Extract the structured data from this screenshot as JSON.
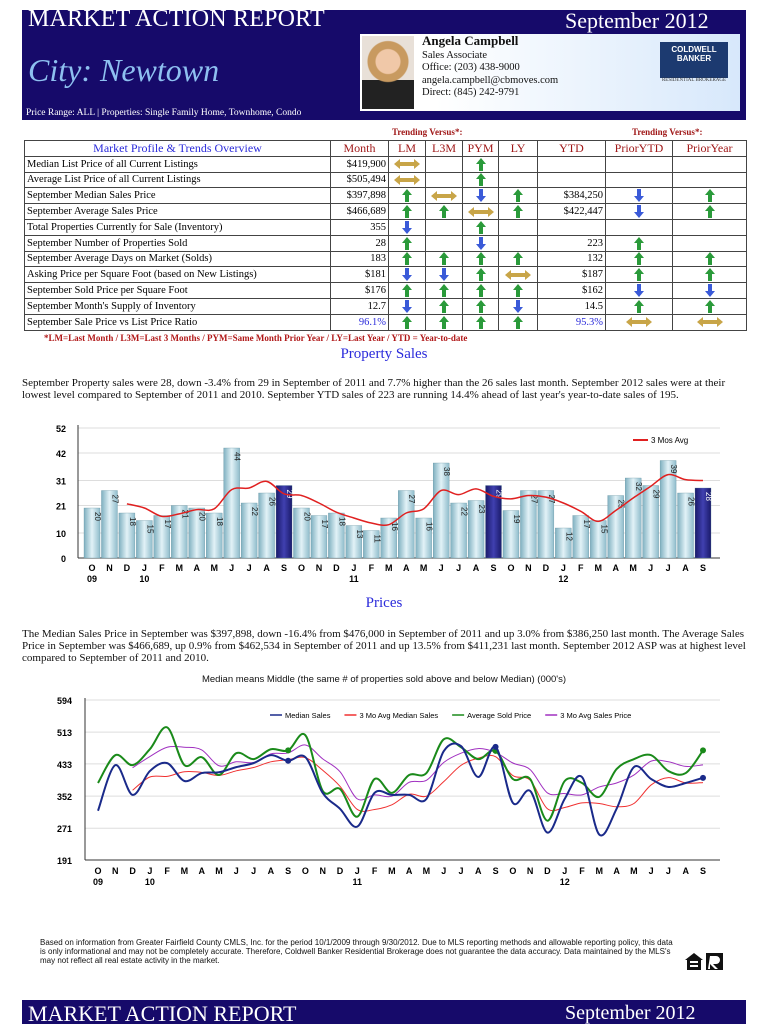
{
  "header": {
    "title": "MARKET ACTION REPORT",
    "date": "September 2012",
    "city": "City: Newtown",
    "price_range": "Price Range: ALL | Properties: Single Family Home, Townhome, Condo"
  },
  "agent": {
    "name": "Angela Campbell",
    "role": "Sales Associate",
    "office": "Office: (203) 438-9000",
    "email": "angela.campbell@cbmoves.com",
    "direct": "Direct: (845) 242-9791",
    "logo_text": "COLDWELL BANKER",
    "logo_sub": "RESIDENTIAL BROKERAGE"
  },
  "table": {
    "trending_label": "Trending Versus*:",
    "headers": [
      "Market Profile & Trends Overview",
      "Month",
      "LM",
      "L3M",
      "PYM",
      "LY",
      "YTD",
      "PriorYTD",
      "PriorYear"
    ],
    "rows": [
      {
        "label": "Median List Price of all Current Listings",
        "month": "$419,900",
        "lm": "side",
        "l3m": "",
        "pym": "up",
        "ly": "",
        "ytd": "",
        "prior_ytd": "",
        "prior_year": ""
      },
      {
        "label": "Average List Price of all Current Listings",
        "month": "$505,494",
        "lm": "side",
        "l3m": "",
        "pym": "up",
        "ly": "",
        "ytd": "",
        "prior_ytd": "",
        "prior_year": ""
      },
      {
        "label": "September Median Sales Price",
        "month": "$397,898",
        "lm": "up",
        "l3m": "side",
        "pym": "down",
        "ly": "up",
        "ytd": "$384,250",
        "prior_ytd": "down",
        "prior_year": "up"
      },
      {
        "label": "September Average Sales Price",
        "month": "$466,689",
        "lm": "up",
        "l3m": "up",
        "pym": "side",
        "ly": "up",
        "ytd": "$422,447",
        "prior_ytd": "down",
        "prior_year": "up"
      },
      {
        "label": "Total Properties Currently for Sale (Inventory)",
        "month": "355",
        "lm": "down",
        "l3m": "",
        "pym": "up",
        "ly": "",
        "ytd": "",
        "prior_ytd": "",
        "prior_year": ""
      },
      {
        "label": "September Number of Properties Sold",
        "month": "28",
        "lm": "up",
        "l3m": "",
        "pym": "down",
        "ly": "",
        "ytd": "223",
        "prior_ytd": "up",
        "prior_year": ""
      },
      {
        "label": "September Average Days on Market (Solds)",
        "month": "183",
        "lm": "up",
        "l3m": "up",
        "pym": "up",
        "ly": "up",
        "ytd": "132",
        "prior_ytd": "up",
        "prior_year": "up"
      },
      {
        "label": "Asking Price per Square Foot (based on New Listings)",
        "month": "$181",
        "lm": "down",
        "l3m": "down",
        "pym": "up",
        "ly": "side",
        "ytd": "$187",
        "prior_ytd": "up",
        "prior_year": "up"
      },
      {
        "label": "September Sold Price per Square Foot",
        "month": "$176",
        "lm": "up",
        "l3m": "up",
        "pym": "up",
        "ly": "up",
        "ytd": "$162",
        "prior_ytd": "down",
        "prior_year": "down"
      },
      {
        "label": "September Month's Supply of Inventory",
        "month": "12.7",
        "lm": "down",
        "l3m": "up",
        "pym": "up",
        "ly": "down",
        "ytd": "14.5",
        "prior_ytd": "up",
        "prior_year": "up"
      },
      {
        "label": "September Sale Price vs List Price Ratio",
        "month": "96.1%",
        "lm": "up",
        "l3m": "up",
        "pym": "up",
        "ly": "up",
        "ytd": "95.3%",
        "prior_ytd": "side",
        "prior_year": "side",
        "highlight": true
      }
    ],
    "footnote": "*LM=Last Month / L3M=Last 3 Months / PYM=Same Month Prior Year / LY=Last Year / YTD = Year-to-date",
    "arrow_colors": {
      "up": "#2a9a3a",
      "down": "#3a5ad8",
      "side": "#c8a548"
    }
  },
  "sales": {
    "heading": "Property Sales",
    "text": "September Property sales were 28, down -3.4% from 29 in September of 2011 and 7.7% higher than the  26 sales last month.  September 2012 sales were at their lowest level compared to September of 2011 and 2010.  September YTD sales of 223 are running 14.4% ahead of  last year's year-to-date sales of 195."
  },
  "prices": {
    "heading": "Prices",
    "text": "The Median Sales Price in September was $397,898, down -16.4% from $476,000 in September of 2011 and up 3.0% from $386,250 last month.  The Average Sales Price in September was $466,689, up 0.9% from $462,534 in September of 2011 and up 13.5% from $411,231 last month.  September 2012 ASP was at highest level compared to September of 2011 and 2010."
  },
  "chart_data": [
    {
      "type": "bar",
      "categories": [
        "O",
        "N",
        "D",
        "J",
        "F",
        "M",
        "A",
        "M",
        "J",
        "J",
        "A",
        "S",
        "O",
        "N",
        "D",
        "J",
        "F",
        "M",
        "A",
        "M",
        "J",
        "J",
        "A",
        "S",
        "O",
        "N",
        "D",
        "J",
        "F",
        "M",
        "A",
        "M",
        "J",
        "J",
        "A",
        "S"
      ],
      "year_labels": {
        "0": "09",
        "3": "10",
        "15": "11",
        "27": "12"
      },
      "values": [
        20,
        27,
        18,
        15,
        17,
        21,
        20,
        18,
        44,
        22,
        26,
        29,
        20,
        17,
        18,
        13,
        11,
        16,
        27,
        16,
        38,
        22,
        23,
        29,
        19,
        27,
        27,
        12,
        17,
        15,
        25,
        32,
        29,
        39,
        26,
        28
      ],
      "highlight_indices": [
        11,
        23,
        35
      ],
      "line_series": {
        "name": "3 Mos Avg",
        "color": "#e02020"
      },
      "yticks": [
        0,
        10,
        21,
        31,
        42,
        52
      ],
      "ylim": [
        0,
        52
      ],
      "grid": true,
      "legend": "top-right",
      "colors": {
        "bar": "#a9d2de",
        "highlight": "#2a2a8a"
      }
    },
    {
      "type": "line",
      "title": "Median means Middle (the same # of properties sold above and below Median) (000's)",
      "categories": [
        "O",
        "N",
        "D",
        "J",
        "F",
        "M",
        "A",
        "M",
        "J",
        "J",
        "A",
        "S",
        "O",
        "N",
        "D",
        "J",
        "F",
        "M",
        "A",
        "M",
        "J",
        "J",
        "A",
        "S",
        "O",
        "N",
        "D",
        "J",
        "F",
        "M",
        "A",
        "M",
        "J",
        "J",
        "A",
        "S"
      ],
      "year_labels": {
        "0": "09",
        "3": "10",
        "15": "11",
        "27": "12"
      },
      "yticks": [
        191,
        271,
        352,
        433,
        513,
        594
      ],
      "ylim": [
        191,
        594
      ],
      "grid": true,
      "legend": "top-right",
      "series": [
        {
          "name": "Median Sales",
          "color": "#1a2a8a",
          "values": [
            315,
            430,
            355,
            415,
            435,
            390,
            410,
            412,
            425,
            435,
            455,
            441,
            450,
            360,
            320,
            275,
            360,
            355,
            355,
            345,
            465,
            478,
            400,
            476,
            335,
            365,
            260,
            345,
            400,
            255,
            320,
            425,
            395,
            375,
            385,
            398
          ]
        },
        {
          "name": "3 Mo Avg Median Sales",
          "color": "#f03030",
          "derived_from": "Median Sales"
        },
        {
          "name": "Average Sold Price",
          "color": "#1a8a1a",
          "values": [
            385,
            455,
            430,
            470,
            525,
            430,
            450,
            405,
            460,
            445,
            470,
            467,
            505,
            365,
            370,
            300,
            395,
            360,
            405,
            410,
            495,
            475,
            445,
            466,
            395,
            395,
            290,
            390,
            385,
            350,
            420,
            445,
            455,
            415,
            410,
            467
          ]
        },
        {
          "name": "3 Mo Avg Sales Price",
          "color": "#a030c0",
          "derived_from": "Average Sold Price"
        }
      ]
    }
  ],
  "disclaimer": "Based on information from Greater Fairfield County CMLS, Inc. for the period 10/1/2009 through 9/30/2012.  Due to MLS reporting methods and allowable reporting policy, this data is only informational and may not be completely accurate.  Therefore, Coldwell Banker Residential Brokerage does not guarantee the data accuracy.  Data maintained by the MLS's may not reflect all real estate activity in the market.",
  "footer": {
    "title": "MARKET ACTION REPORT",
    "date": "September 2012"
  }
}
